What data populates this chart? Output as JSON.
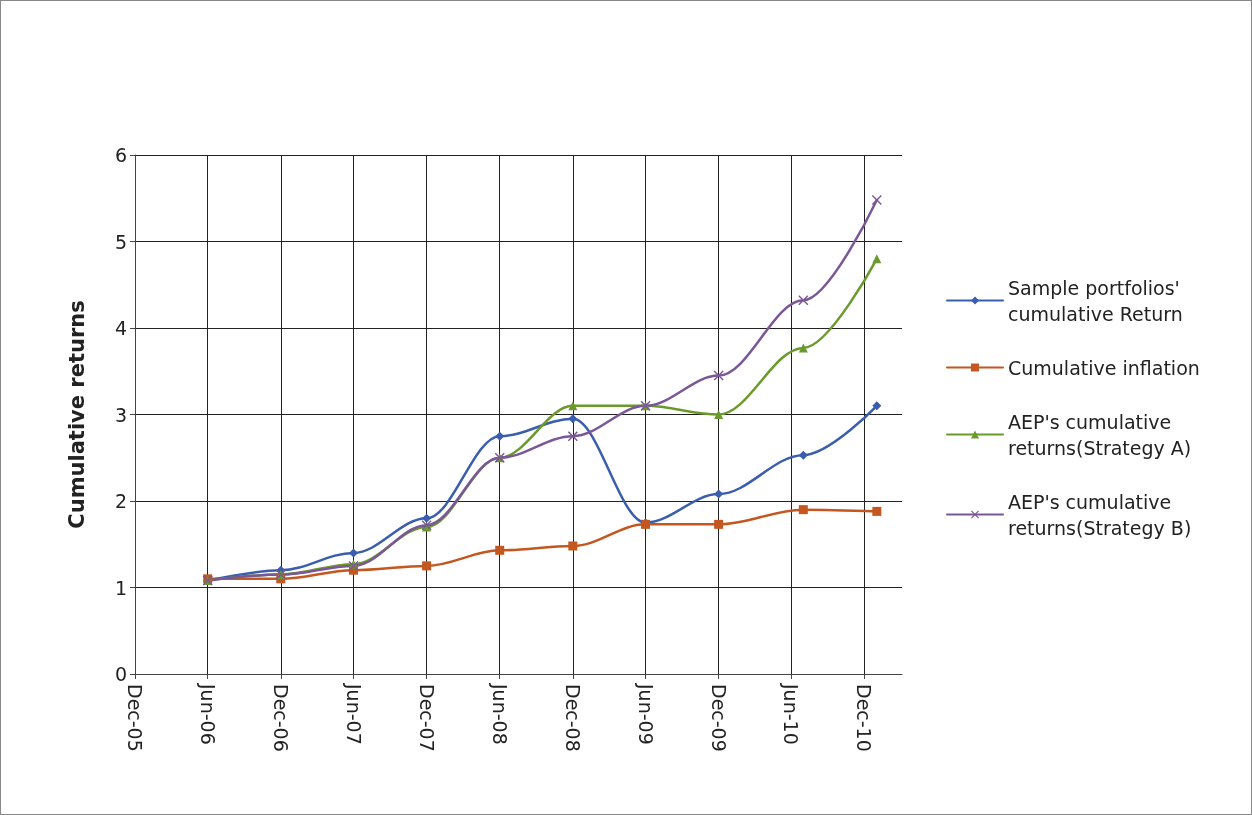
{
  "chart_data": {
    "type": "line",
    "ylabel": "Cumulative returns",
    "x": [
      "2006-06-01",
      "2006-12-01",
      "2007-06-01",
      "2007-12-01",
      "2008-06-01",
      "2008-12-01",
      "2009-06-01",
      "2009-12-01",
      "2010-07-01",
      "2011-01-01"
    ],
    "xlim": [
      "2005-12-01",
      "2011-03-05"
    ],
    "xticks": [
      {
        "value": "2005-12-01",
        "label": "Dec-05"
      },
      {
        "value": "2006-06-01",
        "label": "Jun-06"
      },
      {
        "value": "2006-12-01",
        "label": "Dec-06"
      },
      {
        "value": "2007-06-01",
        "label": "Jun-07"
      },
      {
        "value": "2007-12-01",
        "label": "Dec-07"
      },
      {
        "value": "2008-06-01",
        "label": "Jun-08"
      },
      {
        "value": "2008-12-01",
        "label": "Dec-08"
      },
      {
        "value": "2009-06-01",
        "label": "Jun-09"
      },
      {
        "value": "2009-12-01",
        "label": "Dec-09"
      },
      {
        "value": "2010-06-01",
        "label": "Jun-10"
      },
      {
        "value": "2010-12-01",
        "label": "Dec-10"
      }
    ],
    "ylim": [
      0,
      6
    ],
    "yticks": [
      0,
      1,
      2,
      3,
      4,
      5,
      6
    ],
    "grid": true,
    "legend": "right",
    "series": [
      {
        "name": "Sample portfolios' cumulative Return",
        "color": "#3a5dae",
        "marker": "diamond",
        "values": [
          1.08,
          1.2,
          1.4,
          1.8,
          2.75,
          2.95,
          1.75,
          2.08,
          2.53,
          3.1
        ]
      },
      {
        "name": "Cumulative inflation",
        "color": "#c4561f",
        "marker": "square",
        "values": [
          1.1,
          1.1,
          1.2,
          1.25,
          1.43,
          1.48,
          1.73,
          1.73,
          1.9,
          1.88
        ]
      },
      {
        "name": "AEP's cumulative returns(Strategy A)",
        "color": "#6b9a2c",
        "marker": "triangle",
        "values": [
          1.08,
          1.15,
          1.27,
          1.7,
          2.5,
          3.1,
          3.1,
          3.0,
          3.77,
          4.8
        ]
      },
      {
        "name": "AEP's cumulative returns(Strategy B)",
        "color": "#7a5796",
        "marker": "cross",
        "values": [
          1.08,
          1.15,
          1.25,
          1.72,
          2.5,
          2.75,
          3.1,
          3.45,
          4.32,
          5.48
        ]
      }
    ]
  }
}
